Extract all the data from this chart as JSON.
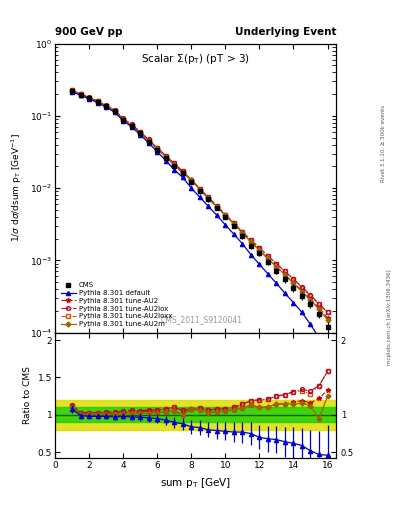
{
  "title_top_left": "900 GeV pp",
  "title_top_right": "Underlying Event",
  "plot_title": "Scalar Σ(p_{T}) (pT > 3)",
  "xlabel": "sum p_{T} [GeV]",
  "ylabel_main": "1/σ dσ/dsum p_{T} [GeV⁻¹]",
  "ylabel_ratio": "Ratio to CMS",
  "watermark": "CMS_2011_S9120041",
  "right_label_top": "Rivet 3.1.10, ≥ 300k events",
  "right_label_bottom": "mcplots.cern.ch [arXiv:1306.3436]",
  "cms_x": [
    1.0,
    1.5,
    2.0,
    2.5,
    3.0,
    3.5,
    4.0,
    4.5,
    5.0,
    5.5,
    6.0,
    6.5,
    7.0,
    7.5,
    8.0,
    8.5,
    9.0,
    9.5,
    10.0,
    10.5,
    11.0,
    11.5,
    12.0,
    12.5,
    13.0,
    13.5,
    14.0,
    14.5,
    15.0,
    15.5,
    16.0
  ],
  "cms_y": [
    0.22,
    0.195,
    0.175,
    0.155,
    0.135,
    0.115,
    0.088,
    0.072,
    0.057,
    0.044,
    0.034,
    0.026,
    0.02,
    0.016,
    0.012,
    0.009,
    0.007,
    0.0053,
    0.004,
    0.003,
    0.0022,
    0.0016,
    0.00125,
    0.00095,
    0.00072,
    0.00055,
    0.00042,
    0.00032,
    0.00025,
    0.00018,
    0.00012
  ],
  "cms_yerr": [
    0.005,
    0.004,
    0.004,
    0.004,
    0.003,
    0.003,
    0.003,
    0.002,
    0.002,
    0.002,
    0.002,
    0.001,
    0.001,
    0.001,
    0.001,
    0.0006,
    0.0005,
    0.0004,
    0.0003,
    0.0002,
    0.0002,
    0.00015,
    0.0001,
    9e-05,
    7e-05,
    6e-05,
    5e-05,
    4e-05,
    3e-05,
    2e-05,
    2e-05
  ],
  "default_x": [
    1.0,
    1.5,
    2.0,
    2.5,
    3.0,
    3.5,
    4.0,
    4.5,
    5.0,
    5.5,
    6.0,
    6.5,
    7.0,
    7.5,
    8.0,
    8.5,
    9.0,
    9.5,
    10.0,
    10.5,
    11.0,
    11.5,
    12.0,
    12.5,
    13.0,
    13.5,
    14.0,
    14.5,
    15.0,
    15.5,
    16.0
  ],
  "default_y": [
    0.215,
    0.192,
    0.172,
    0.152,
    0.132,
    0.112,
    0.086,
    0.07,
    0.055,
    0.042,
    0.032,
    0.024,
    0.018,
    0.014,
    0.01,
    0.0075,
    0.0056,
    0.0042,
    0.0031,
    0.0023,
    0.0017,
    0.0012,
    0.00088,
    0.00065,
    0.00048,
    0.00035,
    0.00026,
    0.00019,
    0.00013,
    8.5e-05,
    5.5e-05
  ],
  "au2_x": [
    1.0,
    1.5,
    2.0,
    2.5,
    3.0,
    3.5,
    4.0,
    4.5,
    5.0,
    5.5,
    6.0,
    6.5,
    7.0,
    7.5,
    8.0,
    8.5,
    9.0,
    9.5,
    10.0,
    10.5,
    11.0,
    11.5,
    12.0,
    12.5,
    13.0,
    13.5,
    14.0,
    14.5,
    15.0,
    15.5,
    16.0
  ],
  "au2_y": [
    0.225,
    0.198,
    0.178,
    0.158,
    0.138,
    0.118,
    0.091,
    0.074,
    0.059,
    0.046,
    0.035,
    0.027,
    0.021,
    0.016,
    0.013,
    0.0095,
    0.0072,
    0.0055,
    0.0042,
    0.0032,
    0.0024,
    0.0018,
    0.00138,
    0.00105,
    0.00082,
    0.00063,
    0.00049,
    0.00038,
    0.00029,
    0.00022,
    0.00016
  ],
  "au2lox_x": [
    1.0,
    1.5,
    2.0,
    2.5,
    3.0,
    3.5,
    4.0,
    4.5,
    5.0,
    5.5,
    6.0,
    6.5,
    7.0,
    7.5,
    8.0,
    8.5,
    9.0,
    9.5,
    10.0,
    10.5,
    11.0,
    11.5,
    12.0,
    12.5,
    13.0,
    13.5,
    14.0,
    14.5,
    15.0,
    15.5,
    16.0
  ],
  "au2lox_y": [
    0.226,
    0.2,
    0.18,
    0.16,
    0.14,
    0.12,
    0.092,
    0.076,
    0.06,
    0.047,
    0.036,
    0.028,
    0.022,
    0.017,
    0.013,
    0.0098,
    0.0074,
    0.0057,
    0.0043,
    0.0033,
    0.0025,
    0.0019,
    0.0015,
    0.00115,
    0.0009,
    0.0007,
    0.00055,
    0.00043,
    0.00033,
    0.00025,
    0.00019
  ],
  "au2loxx_x": [
    1.0,
    1.5,
    2.0,
    2.5,
    3.0,
    3.5,
    4.0,
    4.5,
    5.0,
    5.5,
    6.0,
    6.5,
    7.0,
    7.5,
    8.0,
    8.5,
    9.0,
    9.5,
    10.0,
    10.5,
    11.0,
    11.5,
    12.0,
    12.5,
    13.0,
    13.5,
    14.0,
    14.5,
    15.0,
    15.5,
    16.0
  ],
  "au2loxx_y": [
    0.224,
    0.198,
    0.178,
    0.158,
    0.138,
    0.118,
    0.091,
    0.075,
    0.059,
    0.046,
    0.036,
    0.028,
    0.022,
    0.017,
    0.013,
    0.0098,
    0.0074,
    0.0057,
    0.0043,
    0.0033,
    0.0025,
    0.0019,
    0.0015,
    0.00115,
    0.0009,
    0.0007,
    0.00055,
    0.00042,
    0.00032,
    0.00025,
    0.00019
  ],
  "au2m_x": [
    1.0,
    1.5,
    2.0,
    2.5,
    3.0,
    3.5,
    4.0,
    4.5,
    5.0,
    5.5,
    6.0,
    6.5,
    7.0,
    7.5,
    8.0,
    8.5,
    9.0,
    9.5,
    10.0,
    10.5,
    11.0,
    11.5,
    12.0,
    12.5,
    13.0,
    13.5,
    14.0,
    14.5,
    15.0,
    15.5,
    16.0
  ],
  "au2m_y": [
    0.222,
    0.196,
    0.176,
    0.156,
    0.136,
    0.116,
    0.089,
    0.073,
    0.058,
    0.045,
    0.035,
    0.027,
    0.021,
    0.016,
    0.013,
    0.0095,
    0.0072,
    0.0055,
    0.0042,
    0.0032,
    0.0024,
    0.0018,
    0.00138,
    0.00105,
    0.00082,
    0.00063,
    0.00048,
    0.00037,
    0.00028,
    0.00021,
    0.00015
  ],
  "ratio_x": [
    1.0,
    1.5,
    2.0,
    2.5,
    3.0,
    3.5,
    4.0,
    4.5,
    5.0,
    5.5,
    6.0,
    6.5,
    7.0,
    7.5,
    8.0,
    8.5,
    9.0,
    9.5,
    10.0,
    10.5,
    11.0,
    11.5,
    12.0,
    12.5,
    13.0,
    13.5,
    14.0,
    14.5,
    15.0,
    15.5,
    16.0
  ],
  "ratio_default": [
    1.08,
    0.99,
    0.98,
    0.98,
    0.98,
    0.97,
    0.98,
    0.97,
    0.97,
    0.96,
    0.95,
    0.93,
    0.9,
    0.88,
    0.84,
    0.83,
    0.8,
    0.79,
    0.78,
    0.77,
    0.77,
    0.75,
    0.7,
    0.68,
    0.67,
    0.64,
    0.62,
    0.59,
    0.52,
    0.47,
    0.46
  ],
  "ratio_default_err": [
    0.05,
    0.04,
    0.04,
    0.04,
    0.04,
    0.04,
    0.04,
    0.04,
    0.05,
    0.05,
    0.06,
    0.06,
    0.07,
    0.08,
    0.09,
    0.1,
    0.1,
    0.11,
    0.12,
    0.13,
    0.14,
    0.15,
    0.16,
    0.17,
    0.18,
    0.2,
    0.22,
    0.24,
    0.28,
    0.32,
    0.4
  ],
  "ratio_au2": [
    1.12,
    1.02,
    1.02,
    1.02,
    1.02,
    1.02,
    1.03,
    1.03,
    1.04,
    1.05,
    1.03,
    1.04,
    1.05,
    1.0,
    1.08,
    1.06,
    1.03,
    1.04,
    1.05,
    1.07,
    1.09,
    1.13,
    1.1,
    1.11,
    1.14,
    1.15,
    1.17,
    1.19,
    1.16,
    1.22,
    1.33
  ],
  "ratio_au2lox": [
    1.13,
    1.03,
    1.03,
    1.03,
    1.04,
    1.04,
    1.05,
    1.06,
    1.05,
    1.07,
    1.06,
    1.08,
    1.1,
    1.06,
    1.08,
    1.09,
    1.06,
    1.08,
    1.08,
    1.1,
    1.14,
    1.19,
    1.2,
    1.21,
    1.25,
    1.27,
    1.31,
    1.34,
    1.32,
    1.39,
    1.58
  ],
  "ratio_au2loxx": [
    1.12,
    1.02,
    1.02,
    1.02,
    1.02,
    1.02,
    1.03,
    1.05,
    1.04,
    1.05,
    1.06,
    1.08,
    1.1,
    1.06,
    1.08,
    1.09,
    1.06,
    1.08,
    1.08,
    1.1,
    1.14,
    1.19,
    1.2,
    1.21,
    1.25,
    1.27,
    1.31,
    1.32,
    1.28,
    1.39,
    1.58
  ],
  "ratio_au2m": [
    1.1,
    1.01,
    1.01,
    1.01,
    1.01,
    1.01,
    1.01,
    1.02,
    1.02,
    1.02,
    1.03,
    1.04,
    1.05,
    1.0,
    1.08,
    1.06,
    1.03,
    1.04,
    1.05,
    1.07,
    1.09,
    1.13,
    1.1,
    1.11,
    1.14,
    1.15,
    1.14,
    1.16,
    1.12,
    0.95,
    1.25
  ],
  "cms_color": "#000000",
  "default_color": "#0000cc",
  "au2_color": "#cc0000",
  "au2lox_color": "#bb0033",
  "au2loxx_color": "#cc5500",
  "au2m_color": "#996600",
  "band_green_lo": 0.9,
  "band_green_hi": 1.1,
  "band_yellow_lo": 0.8,
  "band_yellow_hi": 1.2,
  "band_green_color": "#00cc00",
  "band_yellow_color": "#dddd00",
  "xlim": [
    0.0,
    16.5
  ],
  "ylim_main": [
    0.0001,
    1.0
  ],
  "ylim_ratio": [
    0.42,
    2.1
  ]
}
